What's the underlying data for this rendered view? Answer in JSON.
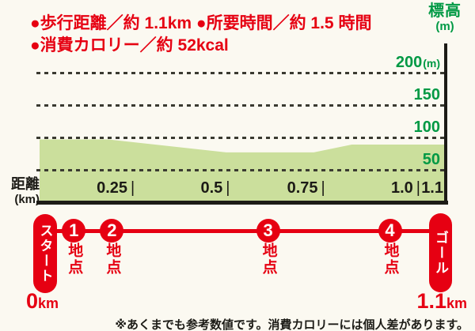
{
  "header": {
    "stats_line1": "●歩行距離／約 1.1km ●所要時間／約 1.5 時間",
    "stats_line2": "●消費カロリー／約 52kcal"
  },
  "chart_data": {
    "type": "area",
    "title": "",
    "ylabel": "標高(m)",
    "xlabel": "距離(km)",
    "y_axis_title": {
      "text": "標高",
      "unit": "(m)"
    },
    "x_axis_title": {
      "text": "距離",
      "unit": "(km)"
    },
    "xlim": [
      0,
      1.1
    ],
    "ylim": [
      0,
      245
    ],
    "grid": "dashed",
    "legend": "none",
    "y_ticks": [
      {
        "value": 200,
        "label": "200",
        "unit": "(m)"
      },
      {
        "value": 150,
        "label": "150",
        "unit": ""
      },
      {
        "value": 100,
        "label": "100",
        "unit": ""
      },
      {
        "value": 50,
        "label": "50",
        "unit": ""
      }
    ],
    "x_ticks": [
      {
        "value": 0.25,
        "label": "0.25",
        "separator": "|"
      },
      {
        "value": 0.5,
        "label": "0.5",
        "separator": "|"
      },
      {
        "value": 0.75,
        "label": "0.75",
        "separator": "|"
      },
      {
        "value": 1.0,
        "label": "1.0",
        "separator": "|"
      },
      {
        "value": 1.1,
        "label": "1.1",
        "separator": ""
      }
    ],
    "series": [
      {
        "name": "elevation-profile",
        "points": [
          {
            "km": 0.0,
            "m": 97
          },
          {
            "km": 0.18,
            "m": 97
          },
          {
            "km": 0.49,
            "m": 77
          },
          {
            "km": 0.72,
            "m": 77
          },
          {
            "km": 0.82,
            "m": 89
          },
          {
            "km": 1.1,
            "m": 89
          }
        ]
      }
    ]
  },
  "route": {
    "start": {
      "label": "スタート",
      "distance_value": "0",
      "distance_unit": "km"
    },
    "goal": {
      "label": "ゴール",
      "distance_value": "1.1",
      "distance_unit": "km"
    },
    "waypoints": [
      {
        "number": "1",
        "label": "地点",
        "km": 0.09
      },
      {
        "number": "2",
        "label": "地点",
        "km": 0.19
      },
      {
        "number": "3",
        "label": "地点",
        "km": 0.6
      },
      {
        "number": "4",
        "label": "地点",
        "km": 0.92
      }
    ]
  },
  "footnote": "※あくまでも参考数値です。消費カロリーには個人差があります。",
  "theme": {
    "accent_red": "#e60012",
    "accent_green": "#009944",
    "area_fill": "#cbdf9c",
    "axis_ink": "#1c1b16",
    "grid_ink": "#3a3a31",
    "background": "#fbf9f1"
  }
}
